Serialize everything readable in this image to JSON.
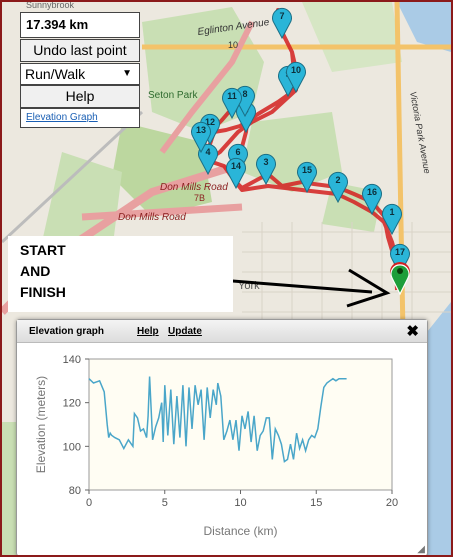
{
  "controls": {
    "distance": "17.394 km",
    "undo_label": "Undo last point",
    "mode_value": "Run/Walk",
    "help_label": "Help",
    "elevation_link": "Elevation Graph"
  },
  "annotation": {
    "text": "START\nAND\nFINISH"
  },
  "map_labels": {
    "eglinton": "Eglinton Avenue",
    "route_10": "10",
    "seton": "Seton Park",
    "don_mills": "Don Mills Road",
    "route_7b": "7B",
    "don_mills_2": "Don Mills Road",
    "york": "York",
    "victoria": "Victoria Park Avenue",
    "sunnybrook": "Sunnybrook"
  },
  "markers": [
    "1",
    "2",
    "3",
    "4",
    "5",
    "6",
    "7",
    "8",
    "9",
    "10",
    "11",
    "12",
    "13",
    "14",
    "15",
    "16",
    "17"
  ],
  "panel": {
    "title": "Elevation graph",
    "help": "Help",
    "update": "Update",
    "close": "✖"
  },
  "colors": {
    "route": "#d42020",
    "marker": "#2ab5d8",
    "finish": "#1f9e3a",
    "line": "#4aa6c9"
  },
  "chart_data": {
    "type": "line",
    "xlabel": "Distance (km)",
    "ylabel": "Elevation (meters)",
    "xlim": [
      0,
      20
    ],
    "ylim": [
      80,
      140
    ],
    "xticks": [
      "0",
      "5",
      "10",
      "15",
      "20"
    ],
    "yticks": [
      "80",
      "100",
      "120",
      "140"
    ],
    "grid": false,
    "x": [
      0,
      0.3,
      0.7,
      1.0,
      1.2,
      1.3,
      1.4,
      1.5,
      1.7,
      2.0,
      2.3,
      2.6,
      2.8,
      2.9,
      3.0,
      3.2,
      3.4,
      3.6,
      3.8,
      3.9,
      4.0,
      4.2,
      4.4,
      4.6,
      4.8,
      4.9,
      5.0,
      5.2,
      5.4,
      5.6,
      5.8,
      6.0,
      6.2,
      6.4,
      6.6,
      6.8,
      7.0,
      7.2,
      7.4,
      7.6,
      7.8,
      8.0,
      8.2,
      8.4,
      8.5,
      8.7,
      8.9,
      9.1,
      9.3,
      9.5,
      9.7,
      9.9,
      10.1,
      10.3,
      10.5,
      10.7,
      10.9,
      11.1,
      11.3,
      11.5,
      11.7,
      11.9,
      12.1,
      12.3,
      12.5,
      12.7,
      12.9,
      13.1,
      13.3,
      13.5,
      13.7,
      13.9,
      14.1,
      14.3,
      14.5,
      14.7,
      14.9,
      15.1,
      15.3,
      15.5,
      15.7,
      15.9,
      16.1,
      16.3,
      16.5,
      16.7,
      17.0
    ],
    "y": [
      131,
      129,
      130,
      125,
      110,
      104,
      106,
      105,
      104,
      103,
      99,
      103,
      101,
      100,
      115,
      113,
      107,
      108,
      104,
      114,
      132,
      103,
      109,
      113,
      120,
      102,
      128,
      105,
      126,
      101,
      123,
      104,
      128,
      100,
      127,
      108,
      128,
      119,
      126,
      103,
      127,
      113,
      126,
      119,
      129,
      123,
      103,
      107,
      112,
      103,
      112,
      98,
      114,
      108,
      116,
      102,
      114,
      98,
      105,
      107,
      113,
      113,
      94,
      108,
      105,
      101,
      93,
      94,
      101,
      94,
      106,
      99,
      103,
      98,
      103,
      105,
      104,
      108,
      118,
      127,
      129,
      130,
      131,
      130,
      131,
      131,
      131
    ]
  }
}
